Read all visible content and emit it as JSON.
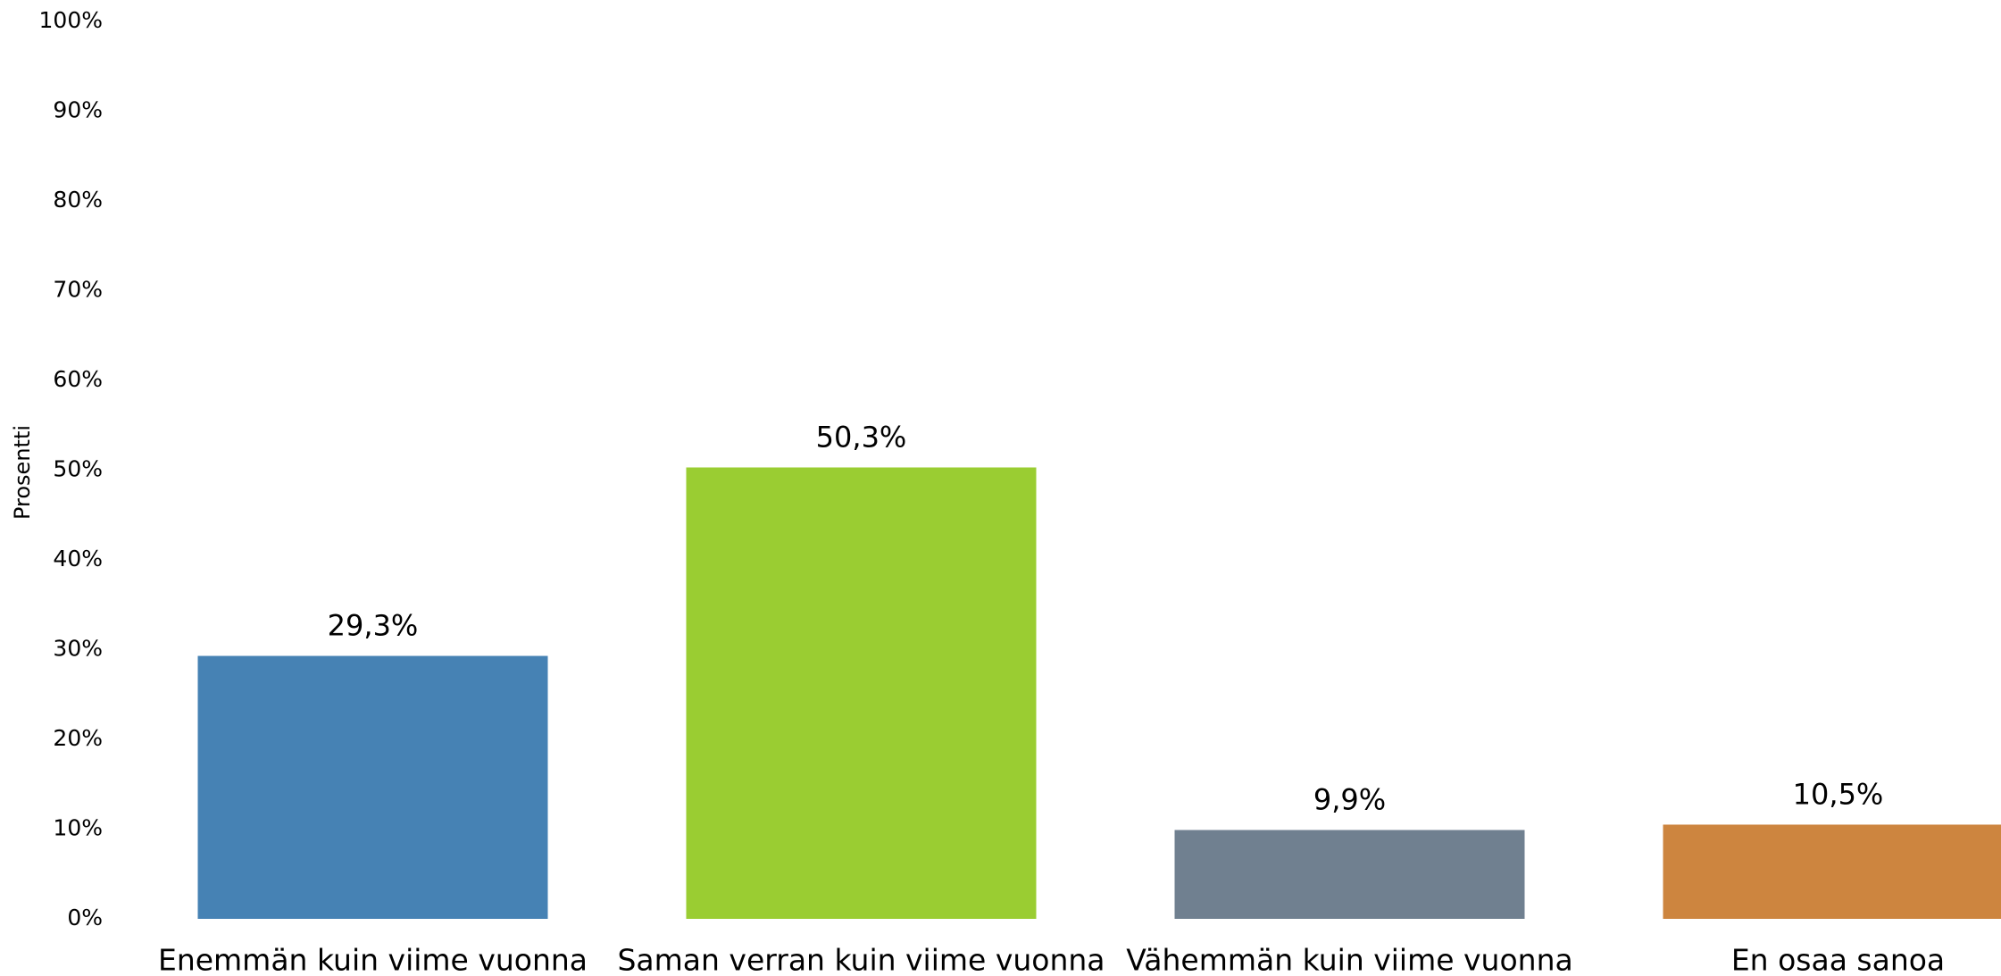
{
  "chart_data": {
    "type": "bar",
    "y_label": "Prosentti",
    "categories": [
      "Enemmän kuin viime vuonna",
      "Saman verran kuin viime vuonna",
      "Vähemmän kuin viime vuonna",
      "En osaa sanoa"
    ],
    "values": [
      29.3,
      50.3,
      9.9,
      10.5
    ],
    "value_labels": [
      "29,3%",
      "50,3%",
      "9,9%",
      "10,5%"
    ],
    "colors": [
      "#4682b4",
      "#9acd32",
      "#708090",
      "#cd853f"
    ],
    "ylim": [
      0,
      100
    ],
    "yticks": [
      {
        "value": 0,
        "label": "0%"
      },
      {
        "value": 10,
        "label": "10%"
      },
      {
        "value": 20,
        "label": "20%"
      },
      {
        "value": 30,
        "label": "30%"
      },
      {
        "value": 40,
        "label": "40%"
      },
      {
        "value": 50,
        "label": "50%"
      },
      {
        "value": 60,
        "label": "60%"
      },
      {
        "value": 70,
        "label": "70%"
      },
      {
        "value": 80,
        "label": "80%"
      },
      {
        "value": 90,
        "label": "90%"
      },
      {
        "value": 100,
        "label": "100%"
      }
    ],
    "grid": false
  }
}
